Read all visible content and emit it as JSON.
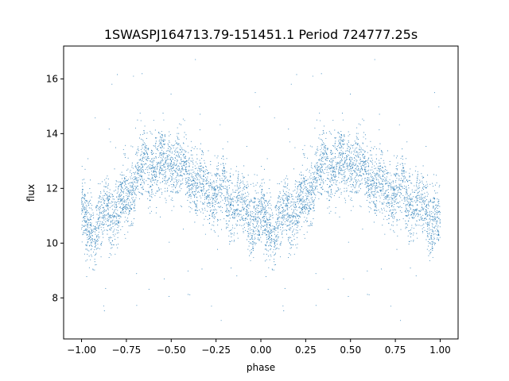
{
  "chart_data": {
    "type": "scatter",
    "title": "1SWASPJ164713.79-151451.1 Period 724777.25s",
    "xlabel": "phase",
    "ylabel": "flux",
    "xlim": [
      -1.1,
      1.1
    ],
    "ylim": [
      6.5,
      17.2
    ],
    "x_ticks": [
      -1.0,
      -0.75,
      -0.5,
      -0.25,
      0.0,
      0.25,
      0.5,
      0.75,
      1.0
    ],
    "x_tick_labels": [
      "−1.00",
      "−0.75",
      "−0.50",
      "−0.25",
      "0.00",
      "0.25",
      "0.50",
      "0.75",
      "1.00"
    ],
    "y_ticks": [
      8,
      10,
      12,
      14,
      16
    ],
    "y_tick_labels": [
      "8",
      "10",
      "12",
      "14",
      "16"
    ],
    "grid": false,
    "legend": "none",
    "point_color": "#1f77b4",
    "phased_light_curve": {
      "phase_range": [
        -1.0,
        1.0
      ],
      "repeat_period": 1.0,
      "points_per_cycle": 3000,
      "flux_profile_phase": [
        0.0,
        0.05,
        0.1,
        0.15,
        0.2,
        0.25,
        0.3,
        0.35,
        0.4,
        0.45,
        0.5,
        0.55,
        0.6,
        0.65,
        0.7,
        0.75,
        0.8,
        0.85,
        0.9,
        0.95,
        1.0
      ],
      "flux_profile_mean": [
        10.8,
        10.6,
        10.7,
        11.2,
        11.2,
        11.6,
        12.4,
        12.9,
        12.8,
        12.8,
        12.9,
        12.8,
        12.6,
        12.2,
        12.0,
        11.8,
        11.7,
        11.4,
        11.3,
        11.0,
        10.8
      ],
      "flux_scatter": 0.6,
      "outlier_fraction": 0.015,
      "outlier_flux_range": [
        7.0,
        16.8
      ]
    }
  }
}
